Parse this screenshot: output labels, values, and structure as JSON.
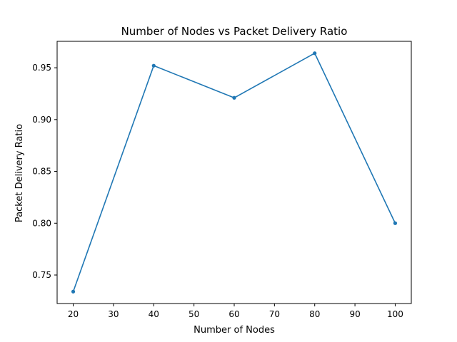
{
  "chart_data": {
    "type": "line",
    "title": "Number of Nodes vs Packet Delivery Ratio",
    "xlabel": "Number of Nodes",
    "ylabel": "Packet Delivery Ratio",
    "x": [
      20,
      40,
      60,
      80,
      100
    ],
    "series": [
      {
        "values": [
          0.734,
          0.952,
          0.921,
          0.964,
          0.8
        ],
        "color": "#1f77b4",
        "marker": "circle"
      }
    ],
    "xlim": [
      16,
      104
    ],
    "ylim": [
      0.7225,
      0.9755
    ],
    "xticks": [
      "20",
      "30",
      "40",
      "50",
      "60",
      "70",
      "80",
      "90",
      "100"
    ],
    "yticks": [
      "0.75",
      "0.80",
      "0.85",
      "0.90",
      "0.95"
    ],
    "grid": false,
    "legend": "none"
  }
}
